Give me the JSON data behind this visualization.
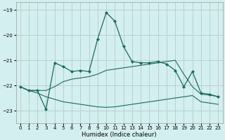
{
  "xlabel": "Humidex (Indice chaleur)",
  "bg_color": "#d4efef",
  "grid_color": "#b8d0d0",
  "line_color": "#1a6b5a",
  "xlim": [
    -0.5,
    23.5
  ],
  "ylim": [
    -23.5,
    -18.7
  ],
  "yticks": [
    -23,
    -22,
    -21,
    -20,
    -19
  ],
  "xticks": [
    0,
    1,
    2,
    3,
    4,
    5,
    6,
    7,
    8,
    9,
    10,
    11,
    12,
    13,
    14,
    15,
    16,
    17,
    18,
    19,
    20,
    21,
    22,
    23
  ],
  "line1_x": [
    0,
    1,
    2,
    3,
    4,
    5,
    6,
    7,
    8,
    9,
    10,
    11,
    12,
    13,
    14,
    15,
    16,
    17,
    18,
    19,
    20,
    21,
    22,
    23
  ],
  "line1_y": [
    -22.05,
    -22.2,
    -22.2,
    -22.95,
    -21.1,
    -21.25,
    -21.45,
    -21.4,
    -21.45,
    -20.15,
    -19.1,
    -19.45,
    -20.45,
    -21.05,
    -21.1,
    -21.1,
    -21.05,
    -21.15,
    -21.4,
    -22.05,
    -21.45,
    -22.3,
    -22.35,
    -22.45
  ],
  "line2_x": [
    0,
    1,
    2,
    3,
    4,
    5,
    6,
    7,
    8,
    9,
    10,
    11,
    12,
    13,
    14,
    15,
    16,
    17,
    18,
    19,
    20,
    21,
    22,
    23
  ],
  "line2_y": [
    -22.05,
    -22.2,
    -22.2,
    -22.2,
    -22.05,
    -21.85,
    -21.75,
    -21.7,
    -21.65,
    -21.55,
    -21.4,
    -21.35,
    -21.3,
    -21.25,
    -21.2,
    -21.15,
    -21.1,
    -21.05,
    -21.0,
    -21.55,
    -22.05,
    -22.35,
    -22.38,
    -22.45
  ],
  "line3_x": [
    0,
    1,
    2,
    3,
    4,
    5,
    6,
    7,
    8,
    9,
    10,
    11,
    12,
    13,
    14,
    15,
    16,
    17,
    18,
    19,
    20,
    21,
    22,
    23
  ],
  "line3_y": [
    -22.05,
    -22.2,
    -22.3,
    -22.45,
    -22.55,
    -22.65,
    -22.7,
    -22.75,
    -22.8,
    -22.85,
    -22.87,
    -22.85,
    -22.8,
    -22.75,
    -22.7,
    -22.65,
    -22.6,
    -22.55,
    -22.5,
    -22.45,
    -22.4,
    -22.65,
    -22.7,
    -22.75
  ]
}
